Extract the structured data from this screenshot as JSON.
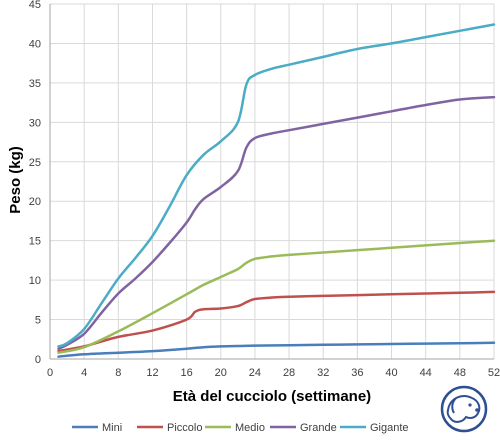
{
  "chart_data": {
    "type": "line",
    "title": "",
    "xlabel": "Età del cucciolo (settimane)",
    "ylabel": "Peso (kg)",
    "xlim": [
      0,
      52
    ],
    "ylim": [
      0,
      45
    ],
    "x_ticks": [
      0,
      4,
      8,
      12,
      16,
      20,
      24,
      28,
      32,
      36,
      40,
      44,
      48,
      52
    ],
    "y_ticks": [
      0,
      5,
      10,
      15,
      20,
      25,
      30,
      35,
      40,
      45
    ],
    "grid": "both",
    "legend_position": "bottom",
    "series": [
      {
        "name": "Mini",
        "color": "#4a7ebb",
        "x": [
          1,
          4,
          8,
          12,
          16,
          18,
          20,
          22,
          24,
          28,
          32,
          36,
          40,
          44,
          48,
          52
        ],
        "y": [
          0.3,
          0.6,
          0.8,
          1.0,
          1.3,
          1.5,
          1.6,
          1.65,
          1.7,
          1.75,
          1.8,
          1.85,
          1.9,
          1.95,
          2.0,
          2.05
        ]
      },
      {
        "name": "Piccolo",
        "color": "#c0504d",
        "x": [
          1,
          4,
          8,
          12,
          16,
          17,
          18,
          20,
          22,
          23,
          24,
          26,
          28,
          32,
          36,
          40,
          44,
          48,
          52
        ],
        "y": [
          1.0,
          1.6,
          2.8,
          3.6,
          5.0,
          6.0,
          6.3,
          6.4,
          6.7,
          7.2,
          7.6,
          7.8,
          7.9,
          8.0,
          8.1,
          8.2,
          8.3,
          8.4,
          8.5
        ]
      },
      {
        "name": "Medio",
        "color": "#9bbb59",
        "x": [
          1,
          4,
          8,
          12,
          16,
          18,
          20,
          22,
          23,
          24,
          26,
          28,
          32,
          36,
          40,
          44,
          48,
          52
        ],
        "y": [
          0.8,
          1.5,
          3.5,
          5.8,
          8.2,
          9.4,
          10.4,
          11.4,
          12.2,
          12.7,
          13.0,
          13.2,
          13.5,
          13.8,
          14.1,
          14.4,
          14.7,
          15.0
        ]
      },
      {
        "name": "Grande",
        "color": "#8064a2",
        "x": [
          1,
          2,
          4,
          6,
          8,
          10,
          12,
          14,
          16,
          17,
          18,
          20,
          22,
          23,
          24,
          26,
          28,
          32,
          36,
          40,
          44,
          48,
          52
        ],
        "y": [
          1.3,
          1.8,
          3.2,
          5.8,
          8.3,
          10.2,
          12.3,
          14.7,
          17.3,
          19.0,
          20.3,
          21.8,
          23.8,
          26.8,
          28.0,
          28.6,
          29.0,
          29.8,
          30.6,
          31.4,
          32.2,
          32.9,
          33.2
        ]
      },
      {
        "name": "Gigante",
        "color": "#4bacc6",
        "x": [
          1,
          2,
          4,
          6,
          8,
          10,
          12,
          14,
          16,
          18,
          20,
          22,
          23,
          24,
          26,
          28,
          32,
          36,
          40,
          44,
          48,
          52
        ],
        "y": [
          1.6,
          2.0,
          3.8,
          7.0,
          10.2,
          12.8,
          15.6,
          19.3,
          23.3,
          25.9,
          27.6,
          30.0,
          34.8,
          36.0,
          36.8,
          37.3,
          38.3,
          39.3,
          40.0,
          40.8,
          41.6,
          42.4
        ]
      }
    ]
  }
}
